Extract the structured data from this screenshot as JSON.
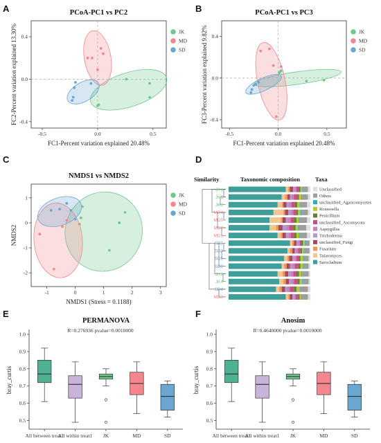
{
  "colors": {
    "JK": "#71c78c",
    "MD": "#f2878e",
    "SD": "#6aa6d0"
  },
  "panels": {
    "A": "A",
    "B": "B",
    "C": "C",
    "D": "D",
    "E": "E",
    "F": "F"
  },
  "chart_data": [
    {
      "type": "scatter",
      "title": "PCoA-PC1 vs PC2",
      "xlabel": "FC1-Percent variation explained 20.48%",
      "ylabel": "FC2-Percent variation explained 13.30%",
      "xlim": [
        -0.6,
        0.62
      ],
      "ylim": [
        -0.46,
        0.55
      ],
      "xticks": [
        -0.5,
        0.0,
        0.5
      ],
      "yticks": [
        -0.4,
        0.0,
        0.4
      ],
      "tick_labels_x": [
        "-0.5",
        "0.0",
        "0.5"
      ],
      "tick_labels_y": [
        "-0.4",
        "0.0",
        "0.4"
      ],
      "legend": [
        "JK",
        "MD",
        "SD"
      ],
      "legend_position": "right",
      "series": [
        {
          "name": "JK",
          "points": [
            [
              0.47,
              -0.04
            ],
            [
              0.47,
              -0.17
            ],
            [
              0.26,
              0.0
            ],
            [
              0.01,
              -0.24
            ],
            [
              0.0,
              -0.25
            ]
          ]
        },
        {
          "name": "MD",
          "points": [
            [
              -0.05,
              0.2
            ],
            [
              -0.09,
              0.2
            ],
            [
              0.03,
              0.29
            ],
            [
              0.05,
              0.24
            ],
            [
              0.0,
              0.09
            ]
          ]
        },
        {
          "name": "SD",
          "points": [
            [
              -0.2,
              -0.03
            ],
            [
              -0.21,
              -0.08
            ],
            [
              -0.22,
              -0.17
            ],
            [
              -0.23,
              -0.2
            ],
            [
              -0.06,
              -0.04
            ]
          ]
        }
      ]
    },
    {
      "type": "scatter",
      "title": "PCoA-PC1 vs PC3",
      "xlabel": "FC1-Percent variation explained 20.48%",
      "ylabel": "FC3-Percent variation explained 9.82%",
      "xlim": [
        -0.58,
        0.7
      ],
      "ylim": [
        -0.48,
        0.55
      ],
      "xticks": [
        -0.5,
        0.0,
        0.5
      ],
      "yticks": [
        -0.4,
        0.0,
        0.4
      ],
      "tick_labels_x": [
        "-0.5",
        "0.0",
        "0.5"
      ],
      "tick_labels_y": [
        "-0.4",
        "0.0",
        "0.4"
      ],
      "legend": [
        "JK",
        "MD",
        "SD"
      ],
      "legend_position": "right",
      "series": [
        {
          "name": "JK",
          "points": [
            [
              0.47,
              -0.02
            ],
            [
              0.29,
              -0.03
            ],
            [
              0.03,
              0.07
            ],
            [
              0.01,
              0.05
            ],
            [
              0.02,
              0.06
            ]
          ]
        },
        {
          "name": "MD",
          "points": [
            [
              -0.18,
              0.26
            ],
            [
              -0.09,
              0.28
            ],
            [
              0.03,
              0.11
            ],
            [
              -0.05,
              0.12
            ],
            [
              -0.02,
              -0.37
            ]
          ]
        },
        {
          "name": "SD",
          "points": [
            [
              -0.25,
              -0.07
            ],
            [
              -0.27,
              -0.11
            ],
            [
              -0.28,
              -0.14
            ],
            [
              -0.23,
              -0.06
            ],
            [
              -0.2,
              -0.04
            ]
          ]
        }
      ]
    },
    {
      "type": "scatter",
      "title": "NMDS1 vs NMDS2",
      "xlabel": "NMDS1 (Stress = 0.1188)",
      "ylabel": "NMDS2",
      "xlim": [
        -1.55,
        3.2
      ],
      "ylim": [
        -2.55,
        1.55
      ],
      "xticks": [
        -1,
        0,
        1,
        2,
        3
      ],
      "yticks": [
        -2,
        -1,
        0,
        1
      ],
      "tick_labels_x": [
        "-1",
        "0",
        "1",
        "2",
        "3"
      ],
      "tick_labels_y": [
        "-2",
        "-1",
        "0",
        "1"
      ],
      "legend": [
        "JK",
        "MD",
        "SD"
      ],
      "legend_position": "right",
      "series": [
        {
          "name": "JK",
          "points": [
            [
              1.75,
              0.42
            ],
            [
              1.55,
              0.0
            ],
            [
              1.2,
              -1.1
            ],
            [
              0.25,
              0.65
            ],
            [
              0.2,
              0.2
            ]
          ]
        },
        {
          "name": "MD",
          "points": [
            [
              -1.25,
              -0.45
            ],
            [
              -0.75,
              -1.85
            ],
            [
              -0.45,
              -0.15
            ],
            [
              -0.3,
              0.1
            ],
            [
              0.15,
              -0.05
            ]
          ]
        },
        {
          "name": "SD",
          "points": [
            [
              -0.85,
              0.5
            ],
            [
              -0.55,
              0.55
            ],
            [
              -0.3,
              0.78
            ],
            [
              -0.15,
              0.5
            ],
            [
              0.0,
              0.15
            ]
          ]
        }
      ]
    },
    {
      "type": "bar",
      "title": "Taxonomic composition",
      "headers": {
        "left": "Similarity",
        "right": "Taxa"
      },
      "categories": [
        "JK1",
        "JK5",
        "JK2",
        "MD4",
        "MD5",
        "MD2",
        "MD1",
        "SD1",
        "SD3",
        "SD5",
        "SD2",
        "JK3",
        "JK4",
        "SD4",
        "MD3"
      ],
      "taxa": [
        "Unclassified",
        "Others",
        "unclassified_Agaricomycetes",
        "Roussoella",
        "Penicillium",
        "unclassified_Ascomycota",
        "Aspergillus",
        "Trichoderma",
        "unclassified_Fungi",
        "Fusarium",
        "Talaromyces",
        "Sarocladium"
      ],
      "taxa_colors": [
        "#dedede",
        "#9e9e9e",
        "#2bb0bf",
        "#b2c940",
        "#6b7b3a",
        "#c94f86",
        "#c87fbc",
        "#b497cf",
        "#a8485a",
        "#e99a5a",
        "#f6c48f",
        "#3e9e99"
      ],
      "series": [
        {
          "name": "Sarocladium",
          "values": [
            70,
            65,
            60,
            55,
            50,
            50,
            60,
            75,
            72,
            68,
            65,
            60,
            62,
            58,
            70
          ]
        },
        {
          "name": "Talaromyces",
          "values": [
            3,
            4,
            5,
            12,
            14,
            8,
            4,
            3,
            3,
            4,
            3,
            6,
            5,
            4,
            3
          ]
        },
        {
          "name": "Fusarium",
          "values": [
            2,
            3,
            2,
            2,
            2,
            3,
            2,
            2,
            3,
            2,
            3,
            3,
            3,
            3,
            2
          ]
        },
        {
          "name": "unclassified_Fungi",
          "values": [
            4,
            3,
            4,
            4,
            4,
            5,
            4,
            3,
            3,
            4,
            4,
            4,
            4,
            4,
            3
          ]
        },
        {
          "name": "Trichoderma",
          "values": [
            2,
            2,
            3,
            3,
            3,
            4,
            3,
            2,
            2,
            3,
            3,
            3,
            3,
            3,
            2
          ]
        },
        {
          "name": "Aspergillus",
          "values": [
            2,
            3,
            3,
            3,
            3,
            4,
            3,
            2,
            2,
            2,
            3,
            3,
            3,
            3,
            2
          ]
        },
        {
          "name": "unclassified_Ascomycota",
          "values": [
            3,
            4,
            4,
            4,
            4,
            5,
            4,
            2,
            3,
            3,
            4,
            4,
            4,
            5,
            3
          ]
        },
        {
          "name": "Penicillium",
          "values": [
            2,
            2,
            3,
            2,
            3,
            3,
            3,
            2,
            2,
            2,
            3,
            3,
            3,
            3,
            2
          ]
        },
        {
          "name": "Roussoella",
          "values": [
            2,
            3,
            3,
            3,
            3,
            3,
            3,
            2,
            2,
            3,
            3,
            3,
            3,
            4,
            2
          ]
        },
        {
          "name": "unclassified_Agaricomycetes",
          "values": [
            1,
            1,
            1,
            1,
            1,
            1,
            1,
            1,
            1,
            1,
            1,
            1,
            1,
            1,
            1
          ]
        },
        {
          "name": "Others",
          "values": [
            6,
            7,
            8,
            8,
            9,
            9,
            9,
            5,
            6,
            6,
            6,
            8,
            7,
            9,
            7
          ]
        },
        {
          "name": "Unclassified",
          "values": [
            3,
            3,
            4,
            3,
            4,
            5,
            4,
            1,
            1,
            2,
            2,
            2,
            2,
            3,
            3
          ]
        }
      ]
    },
    {
      "type": "box",
      "title": "PERMANOVA",
      "subtitle": "R=0.276936 pvalue=0.0010000",
      "ylabel": "bray_curtis",
      "ylim": [
        0.45,
        1.02
      ],
      "yticks": [
        0.5,
        0.6,
        0.7,
        0.8,
        0.9,
        1.0
      ],
      "tick_labels_y": [
        "0.5",
        "0.6",
        "0.7",
        "0.8",
        "0.9",
        "1.0"
      ],
      "categories": [
        "All between treat1",
        "All within treat1",
        "JK",
        "MD",
        "SD"
      ],
      "box_colors": [
        "#4fb194",
        "#c9b3d9",
        "#71c78c",
        "#f2878e",
        "#6aa6d0"
      ],
      "boxes": [
        {
          "min": 0.61,
          "q1": 0.72,
          "median": 0.77,
          "q3": 0.85,
          "max": 0.92,
          "outliers": []
        },
        {
          "min": 0.49,
          "q1": 0.63,
          "median": 0.71,
          "q3": 0.76,
          "max": 0.84,
          "outliers": []
        },
        {
          "min": 0.7,
          "q1": 0.74,
          "median": 0.755,
          "q3": 0.77,
          "max": 0.8,
          "outliers": [
            0.62,
            0.49
          ]
        },
        {
          "min": 0.54,
          "q1": 0.65,
          "median": 0.715,
          "q3": 0.78,
          "max": 0.84,
          "outliers": []
        },
        {
          "min": 0.52,
          "q1": 0.56,
          "median": 0.64,
          "q3": 0.71,
          "max": 0.73,
          "outliers": []
        }
      ]
    },
    {
      "type": "box",
      "title": "Anosim",
      "subtitle": "R=0.4640000 pvalue=0.0010000",
      "ylabel": "bray_curtis",
      "ylim": [
        0.45,
        1.02
      ],
      "yticks": [
        0.5,
        0.6,
        0.7,
        0.8,
        0.9,
        1.0
      ],
      "tick_labels_y": [
        "0.5",
        "0.6",
        "0.7",
        "0.8",
        "0.9",
        "1.0"
      ],
      "categories": [
        "All between treat1",
        "All within treat1",
        "JK",
        "MD",
        "SD"
      ],
      "box_colors": [
        "#4fb194",
        "#c9b3d9",
        "#71c78c",
        "#f2878e",
        "#6aa6d0"
      ],
      "boxes": [
        {
          "min": 0.61,
          "q1": 0.72,
          "median": 0.77,
          "q3": 0.85,
          "max": 0.92,
          "outliers": []
        },
        {
          "min": 0.49,
          "q1": 0.63,
          "median": 0.71,
          "q3": 0.76,
          "max": 0.84,
          "outliers": []
        },
        {
          "min": 0.7,
          "q1": 0.74,
          "median": 0.755,
          "q3": 0.77,
          "max": 0.8,
          "outliers": [
            0.62,
            0.49
          ]
        },
        {
          "min": 0.54,
          "q1": 0.65,
          "median": 0.715,
          "q3": 0.78,
          "max": 0.84,
          "outliers": []
        },
        {
          "min": 0.52,
          "q1": 0.56,
          "median": 0.64,
          "q3": 0.71,
          "max": 0.73,
          "outliers": []
        }
      ]
    }
  ]
}
